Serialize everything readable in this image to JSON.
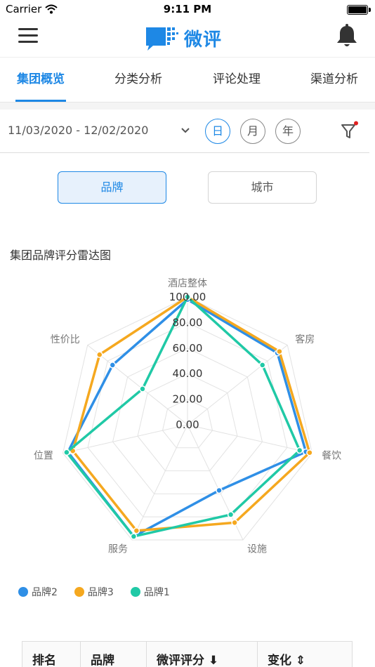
{
  "status": {
    "carrier": "Carrier",
    "time": "9:11 PM"
  },
  "nav": {
    "logo_text": "微评"
  },
  "tabs": [
    {
      "label": "集团概览"
    },
    {
      "label": "分类分析"
    },
    {
      "label": "评论处理"
    },
    {
      "label": "渠道分析"
    }
  ],
  "filter": {
    "date_range": "11/03/2020 - 12/02/2020",
    "periods": [
      "日",
      "月",
      "年"
    ],
    "active_period": "日"
  },
  "segment": {
    "active": "品牌",
    "inactive": "城市"
  },
  "colors": {
    "accent": "#1e88e5",
    "series_blue": "#2f8fe6",
    "series_orange": "#f5a81f",
    "series_teal": "#20c9a6"
  },
  "chart_data": {
    "type": "radar",
    "title": "集团品牌评分雷达图",
    "axes": [
      "酒店整体",
      "客房",
      "餐饮",
      "设施",
      "服务",
      "位置",
      "性价比"
    ],
    "ticks": [
      "0.00",
      "20.00",
      "40.00",
      "60.00",
      "80.00",
      "100.00"
    ],
    "range": [
      0,
      100
    ],
    "series": [
      {
        "name": "品牌2",
        "color": "#2f8fe6",
        "values": [
          98,
          90,
          95,
          57,
          97,
          96,
          75
        ]
      },
      {
        "name": "品牌3",
        "color": "#f5a81f",
        "values": [
          100,
          92,
          98,
          85,
          92,
          92,
          88
        ]
      },
      {
        "name": "品牌1",
        "color": "#20c9a6",
        "values": [
          100,
          75,
          90,
          78,
          97,
          97,
          45
        ]
      }
    ],
    "legend_position": "bottom-left"
  },
  "table": {
    "headers": [
      "排名",
      "品牌",
      "微评评分",
      "变化"
    ]
  }
}
